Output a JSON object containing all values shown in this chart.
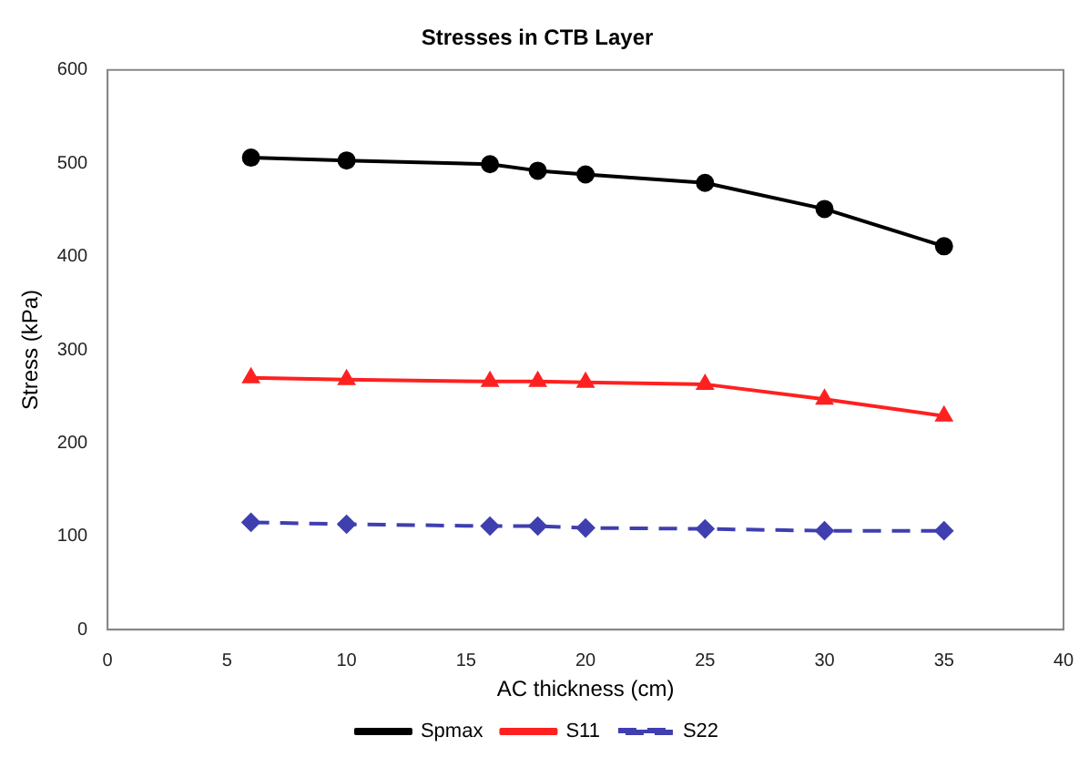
{
  "chart_data": {
    "type": "line",
    "title": "Stresses in CTB Layer",
    "xlabel": "AC thickness (cm)",
    "ylabel": "Stress (kPa)",
    "x": [
      6,
      10,
      16,
      18,
      20,
      25,
      30,
      35
    ],
    "series": [
      {
        "name": "Spmax",
        "color": "#000000",
        "marker": "circle",
        "line_style": "solid",
        "values": [
          506,
          503,
          499,
          492,
          488,
          479,
          451,
          411
        ]
      },
      {
        "name": "S11",
        "color": "#ff2020",
        "marker": "triangle",
        "line_style": "solid",
        "values": [
          270,
          268,
          266,
          266,
          265,
          263,
          247,
          229
        ]
      },
      {
        "name": "S22",
        "color": "#3f3fb0",
        "marker": "diamond",
        "line_style": "dashed",
        "values": [
          115,
          113,
          111,
          111,
          109,
          108,
          106,
          106
        ]
      }
    ],
    "xlim": [
      0,
      40
    ],
    "xticks": [
      0,
      5,
      10,
      15,
      20,
      25,
      30,
      35,
      40
    ],
    "ylim": [
      0,
      600
    ],
    "yticks": [
      0,
      100,
      200,
      300,
      400,
      500,
      600
    ],
    "grid": false,
    "legend": "bottom"
  }
}
